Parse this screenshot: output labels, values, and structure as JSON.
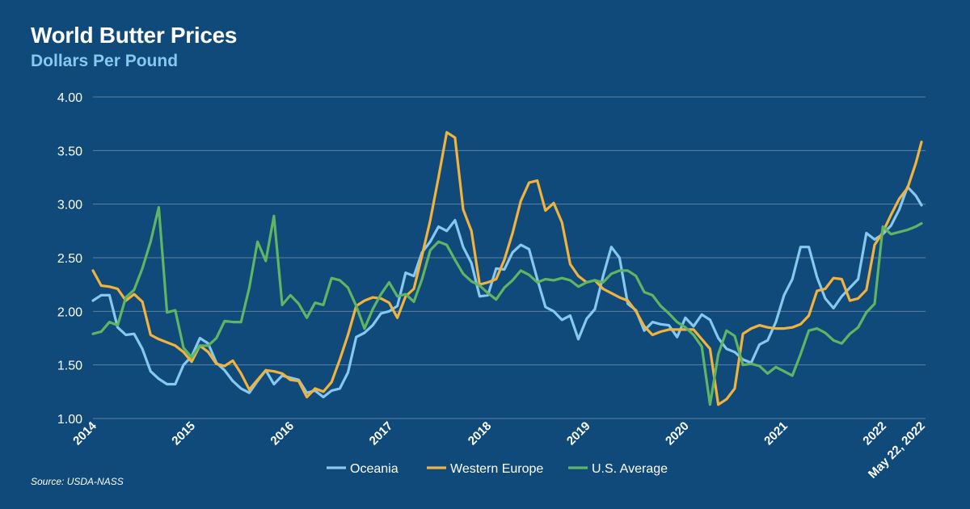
{
  "header": {
    "title": "World Butter Prices",
    "subtitle": "Dollars Per Pound"
  },
  "footer": {
    "source": "Source: USDA-NASS"
  },
  "colors": {
    "background": "#0f4a7a",
    "oceania": "#86c8ee",
    "western_europe": "#f2b33d",
    "us_average": "#5fb562"
  },
  "chart_data": {
    "type": "line",
    "title": "World Butter Prices",
    "subtitle": "Dollars Per Pound",
    "ylim": [
      1.0,
      4.0
    ],
    "y_ticks": [
      "1.00",
      "1.50",
      "2.00",
      "2.50",
      "3.00",
      "3.50",
      "4.00"
    ],
    "x_ticks": [
      {
        "label": "2014",
        "t": 0
      },
      {
        "label": "2015",
        "t": 12
      },
      {
        "label": "2016",
        "t": 24
      },
      {
        "label": "2017",
        "t": 36
      },
      {
        "label": "2018",
        "t": 48
      },
      {
        "label": "2019",
        "t": 60
      },
      {
        "label": "2020",
        "t": 72
      },
      {
        "label": "2021",
        "t": 84
      },
      {
        "label": "2022",
        "t": 96
      },
      {
        "label": "May 22, 2022",
        "t": 100.7
      }
    ],
    "x_domain": [
      0,
      100.7
    ],
    "grid": true,
    "legend_position": "bottom",
    "series": [
      {
        "name": "Oceania",
        "key": "oceania",
        "values": [
          [
            0,
            2.1
          ],
          [
            1,
            2.15
          ],
          [
            2,
            2.15
          ],
          [
            3,
            1.85
          ],
          [
            4,
            1.78
          ],
          [
            5,
            1.79
          ],
          [
            6,
            1.65
          ],
          [
            7,
            1.44
          ],
          [
            8,
            1.37
          ],
          [
            9,
            1.32
          ],
          [
            10,
            1.32
          ],
          [
            11,
            1.5
          ],
          [
            12,
            1.58
          ],
          [
            13,
            1.75
          ],
          [
            14,
            1.7
          ],
          [
            15,
            1.52
          ],
          [
            16,
            1.45
          ],
          [
            17,
            1.35
          ],
          [
            18,
            1.28
          ],
          [
            19,
            1.24
          ],
          [
            20,
            1.35
          ],
          [
            21,
            1.45
          ],
          [
            22,
            1.32
          ],
          [
            23,
            1.4
          ],
          [
            24,
            1.38
          ],
          [
            25,
            1.36
          ],
          [
            26,
            1.24
          ],
          [
            27,
            1.26
          ],
          [
            28,
            1.2
          ],
          [
            29,
            1.26
          ],
          [
            30,
            1.28
          ],
          [
            31,
            1.43
          ],
          [
            32,
            1.76
          ],
          [
            33,
            1.8
          ],
          [
            34,
            1.87
          ],
          [
            35,
            1.98
          ],
          [
            36,
            2.0
          ],
          [
            37,
            2.05
          ],
          [
            38,
            2.36
          ],
          [
            39,
            2.33
          ],
          [
            40,
            2.55
          ],
          [
            41,
            2.65
          ],
          [
            42,
            2.79
          ],
          [
            43,
            2.75
          ],
          [
            44,
            2.85
          ],
          [
            45,
            2.6
          ],
          [
            46,
            2.45
          ],
          [
            47,
            2.14
          ],
          [
            48,
            2.15
          ],
          [
            49,
            2.4
          ],
          [
            50,
            2.39
          ],
          [
            51,
            2.55
          ],
          [
            52,
            2.62
          ],
          [
            53,
            2.58
          ],
          [
            54,
            2.3
          ],
          [
            55,
            2.04
          ],
          [
            56,
            2.0
          ],
          [
            57,
            1.92
          ],
          [
            58,
            1.96
          ],
          [
            59,
            1.74
          ],
          [
            60,
            1.93
          ],
          [
            61,
            2.02
          ],
          [
            62,
            2.33
          ],
          [
            63,
            2.6
          ],
          [
            64,
            2.5
          ],
          [
            65,
            2.07
          ],
          [
            66,
            2.01
          ],
          [
            67,
            1.82
          ],
          [
            68,
            1.9
          ],
          [
            69,
            1.88
          ],
          [
            70,
            1.87
          ],
          [
            71,
            1.76
          ],
          [
            72,
            1.94
          ],
          [
            73,
            1.86
          ],
          [
            74,
            1.97
          ],
          [
            75,
            1.92
          ],
          [
            76,
            1.75
          ],
          [
            77,
            1.65
          ],
          [
            78,
            1.62
          ],
          [
            79,
            1.55
          ],
          [
            80,
            1.52
          ],
          [
            81,
            1.69
          ],
          [
            82,
            1.73
          ],
          [
            83,
            1.9
          ],
          [
            84,
            2.15
          ],
          [
            85,
            2.3
          ],
          [
            86,
            2.6
          ],
          [
            87,
            2.6
          ],
          [
            88,
            2.32
          ],
          [
            89,
            2.12
          ],
          [
            90,
            2.03
          ],
          [
            91,
            2.14
          ],
          [
            92,
            2.22
          ],
          [
            93,
            2.3
          ],
          [
            94,
            2.73
          ],
          [
            95,
            2.67
          ],
          [
            96,
            2.72
          ],
          [
            97,
            2.8
          ],
          [
            98,
            2.95
          ],
          [
            99,
            3.16
          ],
          [
            100,
            3.08
          ],
          [
            100.7,
            2.99
          ]
        ]
      },
      {
        "name": "Western Europe",
        "key": "western_europe",
        "values": [
          [
            0,
            2.38
          ],
          [
            1,
            2.24
          ],
          [
            2,
            2.23
          ],
          [
            3,
            2.21
          ],
          [
            4,
            2.1
          ],
          [
            5,
            2.16
          ],
          [
            6,
            2.09
          ],
          [
            7,
            1.78
          ],
          [
            8,
            1.74
          ],
          [
            9,
            1.71
          ],
          [
            10,
            1.68
          ],
          [
            11,
            1.62
          ],
          [
            12,
            1.53
          ],
          [
            13,
            1.68
          ],
          [
            14,
            1.62
          ],
          [
            15,
            1.51
          ],
          [
            16,
            1.49
          ],
          [
            17,
            1.54
          ],
          [
            18,
            1.42
          ],
          [
            19,
            1.27
          ],
          [
            20,
            1.36
          ],
          [
            21,
            1.45
          ],
          [
            22,
            1.44
          ],
          [
            23,
            1.42
          ],
          [
            24,
            1.36
          ],
          [
            25,
            1.35
          ],
          [
            26,
            1.2
          ],
          [
            27,
            1.28
          ],
          [
            28,
            1.25
          ],
          [
            29,
            1.34
          ],
          [
            30,
            1.55
          ],
          [
            31,
            1.78
          ],
          [
            32,
            2.05
          ],
          [
            33,
            2.1
          ],
          [
            34,
            2.13
          ],
          [
            35,
            2.12
          ],
          [
            36,
            2.08
          ],
          [
            37,
            1.94
          ],
          [
            38,
            2.14
          ],
          [
            39,
            2.21
          ],
          [
            40,
            2.52
          ],
          [
            41,
            2.85
          ],
          [
            42,
            3.25
          ],
          [
            43,
            3.67
          ],
          [
            44,
            3.62
          ],
          [
            45,
            2.95
          ],
          [
            46,
            2.75
          ],
          [
            47,
            2.25
          ],
          [
            48,
            2.27
          ],
          [
            49,
            2.3
          ],
          [
            50,
            2.48
          ],
          [
            51,
            2.73
          ],
          [
            52,
            3.03
          ],
          [
            53,
            3.2
          ],
          [
            54,
            3.22
          ],
          [
            55,
            2.94
          ],
          [
            56,
            3.01
          ],
          [
            57,
            2.83
          ],
          [
            58,
            2.44
          ],
          [
            59,
            2.33
          ],
          [
            60,
            2.27
          ],
          [
            61,
            2.29
          ],
          [
            62,
            2.21
          ],
          [
            63,
            2.17
          ],
          [
            64,
            2.13
          ],
          [
            65,
            2.1
          ],
          [
            66,
            2.0
          ],
          [
            67,
            1.86
          ],
          [
            68,
            1.78
          ],
          [
            69,
            1.81
          ],
          [
            70,
            1.83
          ],
          [
            71,
            1.83
          ],
          [
            72,
            1.83
          ],
          [
            73,
            1.83
          ],
          [
            74,
            1.74
          ],
          [
            75,
            1.65
          ],
          [
            76,
            1.13
          ],
          [
            77,
            1.18
          ],
          [
            78,
            1.28
          ],
          [
            79,
            1.79
          ],
          [
            80,
            1.84
          ],
          [
            81,
            1.87
          ],
          [
            82,
            1.85
          ],
          [
            83,
            1.84
          ],
          [
            84,
            1.84
          ],
          [
            85,
            1.85
          ],
          [
            86,
            1.88
          ],
          [
            87,
            1.96
          ],
          [
            88,
            2.19
          ],
          [
            89,
            2.21
          ],
          [
            90,
            2.31
          ],
          [
            91,
            2.3
          ],
          [
            92,
            2.1
          ],
          [
            93,
            2.12
          ],
          [
            94,
            2.2
          ],
          [
            95,
            2.62
          ],
          [
            96,
            2.74
          ],
          [
            97,
            2.9
          ],
          [
            98,
            3.05
          ],
          [
            99,
            3.15
          ],
          [
            100,
            3.38
          ],
          [
            100.7,
            3.58
          ]
        ]
      },
      {
        "name": "U.S. Average",
        "key": "us_average",
        "values": [
          [
            0,
            1.79
          ],
          [
            1,
            1.81
          ],
          [
            2,
            1.9
          ],
          [
            3,
            1.87
          ],
          [
            4,
            2.13
          ],
          [
            5,
            2.2
          ],
          [
            6,
            2.4
          ],
          [
            7,
            2.65
          ],
          [
            8,
            2.97
          ],
          [
            9,
            1.99
          ],
          [
            10,
            2.01
          ],
          [
            11,
            1.66
          ],
          [
            12,
            1.57
          ],
          [
            13,
            1.68
          ],
          [
            14,
            1.68
          ],
          [
            15,
            1.75
          ],
          [
            16,
            1.91
          ],
          [
            17,
            1.9
          ],
          [
            18,
            1.9
          ],
          [
            19,
            2.22
          ],
          [
            20,
            2.65
          ],
          [
            21,
            2.47
          ],
          [
            22,
            2.89
          ],
          [
            23,
            2.06
          ],
          [
            24,
            2.15
          ],
          [
            25,
            2.07
          ],
          [
            26,
            1.94
          ],
          [
            27,
            2.08
          ],
          [
            28,
            2.06
          ],
          [
            29,
            2.31
          ],
          [
            30,
            2.29
          ],
          [
            31,
            2.22
          ],
          [
            32,
            2.05
          ],
          [
            33,
            1.84
          ],
          [
            34,
            2.02
          ],
          [
            35,
            2.16
          ],
          [
            36,
            2.27
          ],
          [
            37,
            2.14
          ],
          [
            38,
            2.16
          ],
          [
            39,
            2.09
          ],
          [
            40,
            2.3
          ],
          [
            41,
            2.57
          ],
          [
            42,
            2.65
          ],
          [
            43,
            2.62
          ],
          [
            44,
            2.48
          ],
          [
            45,
            2.35
          ],
          [
            46,
            2.28
          ],
          [
            47,
            2.24
          ],
          [
            48,
            2.17
          ],
          [
            49,
            2.11
          ],
          [
            50,
            2.22
          ],
          [
            51,
            2.29
          ],
          [
            52,
            2.38
          ],
          [
            53,
            2.34
          ],
          [
            54,
            2.27
          ],
          [
            55,
            2.3
          ],
          [
            56,
            2.29
          ],
          [
            57,
            2.31
          ],
          [
            58,
            2.29
          ],
          [
            59,
            2.23
          ],
          [
            60,
            2.27
          ],
          [
            61,
            2.29
          ],
          [
            62,
            2.27
          ],
          [
            63,
            2.35
          ],
          [
            64,
            2.38
          ],
          [
            65,
            2.38
          ],
          [
            66,
            2.33
          ],
          [
            67,
            2.18
          ],
          [
            68,
            2.15
          ],
          [
            69,
            2.05
          ],
          [
            70,
            1.98
          ],
          [
            71,
            1.9
          ],
          [
            72,
            1.85
          ],
          [
            73,
            1.78
          ],
          [
            74,
            1.67
          ],
          [
            75,
            1.13
          ],
          [
            76,
            1.6
          ],
          [
            77,
            1.82
          ],
          [
            78,
            1.77
          ],
          [
            79,
            1.5
          ],
          [
            80,
            1.51
          ],
          [
            81,
            1.49
          ],
          [
            82,
            1.42
          ],
          [
            83,
            1.48
          ],
          [
            84,
            1.44
          ],
          [
            85,
            1.4
          ],
          [
            86,
            1.6
          ],
          [
            87,
            1.82
          ],
          [
            88,
            1.84
          ],
          [
            89,
            1.8
          ],
          [
            90,
            1.73
          ],
          [
            91,
            1.7
          ],
          [
            92,
            1.79
          ],
          [
            93,
            1.85
          ],
          [
            94,
            1.99
          ],
          [
            95,
            2.07
          ],
          [
            96,
            2.79
          ],
          [
            97,
            2.72
          ],
          [
            98,
            2.74
          ],
          [
            99,
            2.76
          ],
          [
            100,
            2.79
          ],
          [
            100.7,
            2.82
          ]
        ]
      }
    ]
  }
}
